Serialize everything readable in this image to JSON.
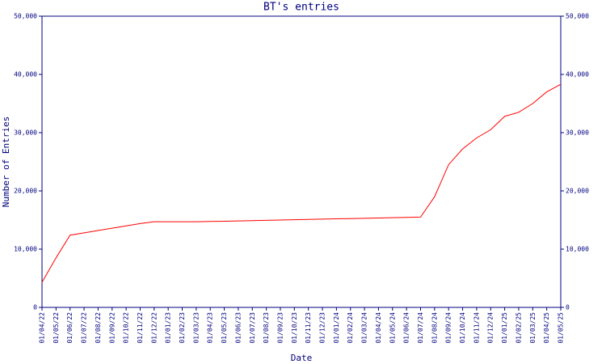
{
  "chart_data": {
    "type": "line",
    "title": "BT's entries",
    "x_label": "Date",
    "y_label": "Number of Entries",
    "categories": [
      "01/04/22",
      "01/05/22",
      "01/06/22",
      "01/07/22",
      "01/08/22",
      "01/09/22",
      "01/10/22",
      "01/11/22",
      "01/12/22",
      "01/01/23",
      "01/02/23",
      "01/03/23",
      "01/04/23",
      "01/05/23",
      "01/06/23",
      "01/07/23",
      "01/08/23",
      "01/09/23",
      "01/10/23",
      "01/11/23",
      "01/12/23",
      "01/01/24",
      "01/02/24",
      "01/03/24",
      "01/04/24",
      "01/05/24",
      "01/06/24",
      "01/07/24",
      "01/08/24",
      "01/09/24",
      "01/10/24",
      "01/11/24",
      "01/12/24",
      "01/01/25",
      "01/02/25",
      "01/03/25",
      "01/04/25",
      "01/05/25"
    ],
    "values": [
      4300,
      8500,
      12400,
      12800,
      13200,
      13600,
      14000,
      14400,
      14700,
      14700,
      14700,
      14700,
      14750,
      14800,
      14850,
      14900,
      14950,
      15000,
      15050,
      15100,
      15150,
      15200,
      15250,
      15300,
      15350,
      15400,
      15450,
      15500,
      19000,
      24500,
      27200,
      29100,
      30500,
      32800,
      33500,
      35000,
      37000,
      38300
    ],
    "color": "#ff0000",
    "ylim": [
      0,
      50000
    ],
    "yticks": [
      0,
      {
        "value": 10000,
        "label": "10,000"
      },
      {
        "value": 20000,
        "label": "20,000"
      },
      {
        "value": 30000,
        "label": "30,000"
      },
      {
        "value": 40000,
        "label": "40,000"
      },
      {
        "value": 50000,
        "label": "50,000"
      }
    ],
    "y2lim": [
      0,
      50000
    ],
    "y2ticks": [
      0,
      {
        "value": 10000,
        "label": "10,000"
      },
      {
        "value": 20000,
        "label": "20,000"
      },
      {
        "value": 30000,
        "label": "30,000"
      },
      {
        "value": 40000,
        "label": "40,000"
      },
      {
        "value": 50000,
        "label": "50,000"
      }
    ]
  }
}
